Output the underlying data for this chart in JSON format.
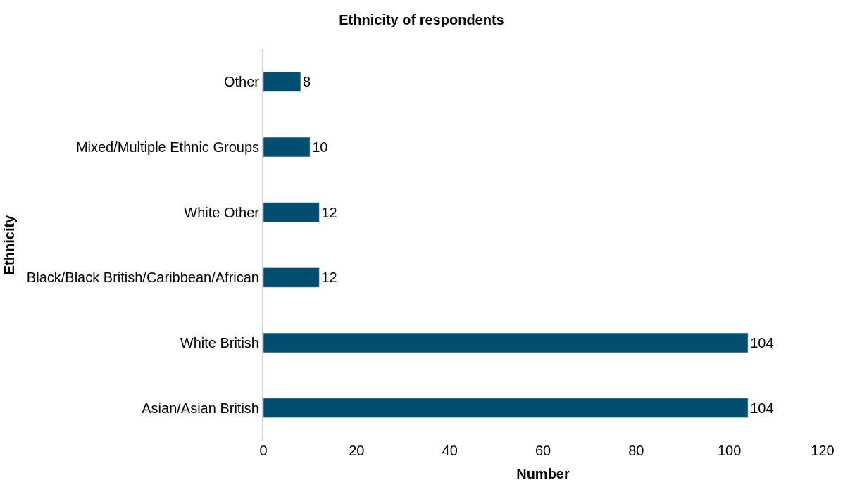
{
  "chart_data": {
    "type": "bar",
    "orientation": "horizontal",
    "title": "Ethnicity of respondents",
    "xlabel": "Number",
    "ylabel": "Ethnicity",
    "categories": [
      "Other",
      "Mixed/Multiple Ethnic Groups",
      "White Other",
      "Black/Black British/Caribbean/African",
      "White British",
      "Asian/Asian British"
    ],
    "values": [
      8,
      10,
      12,
      12,
      104,
      104
    ],
    "color": "#004f71",
    "xlim": [
      0,
      120
    ],
    "xticks": [
      0,
      20,
      40,
      60,
      80,
      100,
      120
    ],
    "legend": false,
    "data_labels": true
  }
}
